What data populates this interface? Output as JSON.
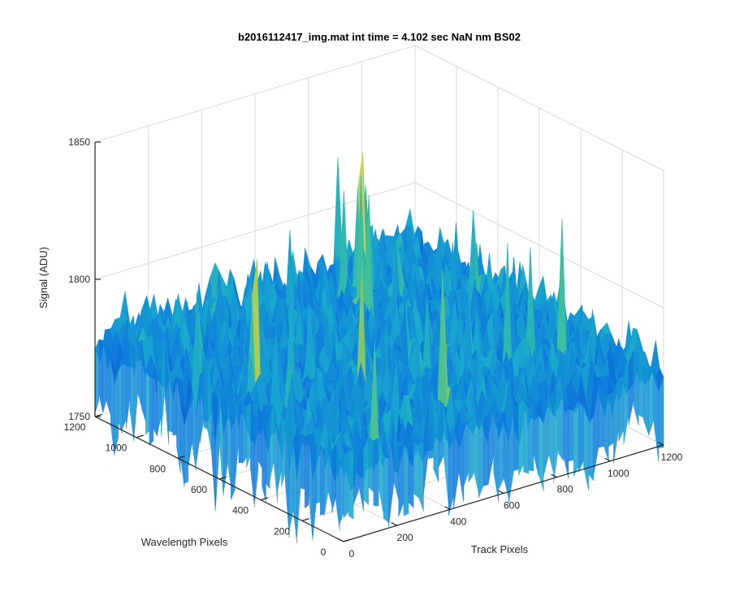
{
  "chart_data": {
    "type": "surface",
    "title": "b2016112417_img.mat int time = 4.102 sec  NaN nm BS02",
    "xlabel": "Track Pixels",
    "ylabel": "Wavelength Pixels",
    "zlabel": "Signal (ADU)",
    "xlim": [
      0,
      1200
    ],
    "ylim": [
      0,
      1200
    ],
    "zlim": [
      1750,
      1850
    ],
    "xticks": [
      "0",
      "200",
      "400",
      "600",
      "800",
      "1000",
      "1200"
    ],
    "yticks": [
      "0",
      "200",
      "400",
      "600",
      "800",
      "1000",
      "1200"
    ],
    "zticks": [
      "1750",
      "1800",
      "1850"
    ],
    "grid": true,
    "colormap": "parula",
    "surface": {
      "x_range": [
        0,
        1200
      ],
      "y_range": [
        0,
        1200
      ],
      "mean_signal": 1778,
      "noise_std": 6,
      "max_signal": 1835,
      "min_signal": 1760
    },
    "colors": {
      "axis": "#262626",
      "grid": "#d9d9d9",
      "low": "#0c72d8",
      "mid": "#22b4c8",
      "high": "#e3d84a"
    }
  }
}
